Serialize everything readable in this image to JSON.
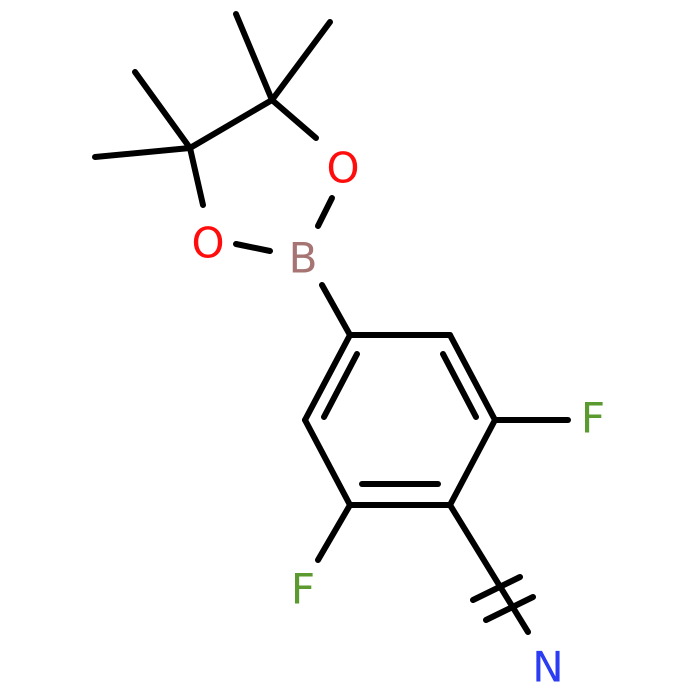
{
  "atoms": [
    {
      "label": "O"
    },
    {
      "label": "O"
    },
    {
      "label": "B"
    },
    {
      "label": "F"
    },
    {
      "label": "F"
    },
    {
      "label": "N"
    }
  ]
}
